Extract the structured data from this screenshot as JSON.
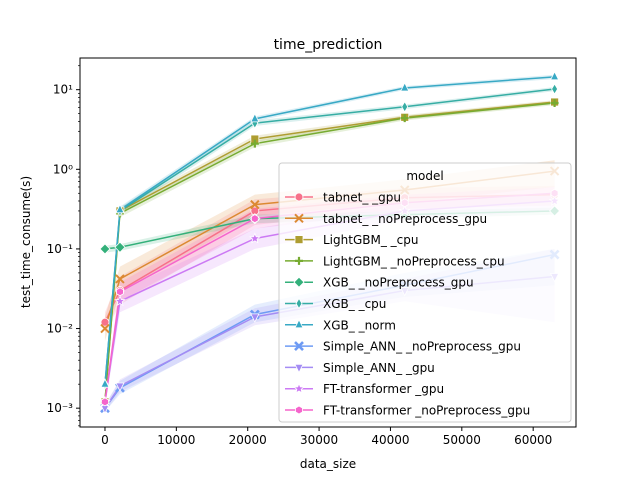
{
  "chart_data": {
    "type": "line",
    "title": "time_prediction",
    "xlabel": "data_size",
    "ylabel": "test_time_consume(s)",
    "yscale": "log",
    "xlim": [
      -3500,
      66000
    ],
    "ylim": [
      0.00058,
      25
    ],
    "grid": false,
    "x_ticks": [
      0,
      10000,
      20000,
      30000,
      40000,
      50000,
      60000
    ],
    "x_tick_labels": [
      "0",
      "10000",
      "20000",
      "30000",
      "40000",
      "50000",
      "60000"
    ],
    "y_ticks": [
      0.001,
      0.01,
      0.1,
      1,
      10
    ],
    "y_tick_labels": [
      "10⁻³",
      "10⁻²",
      "10⁻¹",
      "10⁰",
      "10¹"
    ],
    "legend": {
      "title": "model",
      "placement": "center-right"
    },
    "x": [
      0,
      2100,
      21000,
      42000,
      63000
    ],
    "series": [
      {
        "name": "tabnet_ _gpu",
        "color": "#f77189",
        "marker": "circle",
        "values": [
          0.012,
          0.03,
          0.3,
          0.44,
          0.48
        ],
        "band": [
          [
            0.009,
            0.016
          ],
          [
            0.02,
            0.045
          ],
          [
            0.2,
            0.42
          ],
          [
            0.32,
            0.58
          ],
          [
            0.35,
            0.62
          ]
        ]
      },
      {
        "name": "tabnet_ _noPreprocess_gpu",
        "color": "#dc8932",
        "marker": "x",
        "values": [
          0.01,
          0.042,
          0.36,
          0.55,
          0.95
        ],
        "band": [
          [
            0.007,
            0.014
          ],
          [
            0.028,
            0.06
          ],
          [
            0.26,
            0.48
          ],
          [
            0.38,
            0.75
          ],
          [
            0.6,
            1.3
          ]
        ]
      },
      {
        "name": "LightGBM_ _cpu",
        "color": "#ae9d31",
        "marker": "square",
        "values": [
          0.0012,
          0.3,
          2.4,
          4.5,
          7
        ],
        "band": [
          [
            0.001,
            0.0014
          ],
          [
            0.27,
            0.33
          ],
          [
            2.2,
            2.65
          ],
          [
            4.2,
            4.8
          ],
          [
            6.6,
            7.4
          ]
        ]
      },
      {
        "name": "LightGBM_ _noPreprocess_cpu",
        "color": "#77ab31",
        "marker": "plus",
        "values": [
          0.0012,
          0.28,
          2.1,
          4.4,
          6.8
        ],
        "band": [
          [
            0.001,
            0.0014
          ],
          [
            0.25,
            0.31
          ],
          [
            1.9,
            2.3
          ],
          [
            4.1,
            4.7
          ],
          [
            6.4,
            7.2
          ]
        ]
      },
      {
        "name": "XGB_ _noPreprocess_gpu",
        "color": "#33b07a",
        "marker": "diamond",
        "values": [
          0.1,
          0.105,
          0.24,
          0.27,
          0.3
        ],
        "band": [
          [
            0.09,
            0.11
          ],
          [
            0.095,
            0.115
          ],
          [
            0.21,
            0.27
          ],
          [
            0.24,
            0.3
          ],
          [
            0.27,
            0.33
          ]
        ]
      },
      {
        "name": "XGB_ _cpu",
        "color": "#36ada4",
        "marker": "thin_diamond",
        "values": [
          0.002,
          0.3,
          3.8,
          6.1,
          10.2
        ],
        "band": [
          [
            0.0017,
            0.0023
          ],
          [
            0.27,
            0.33
          ],
          [
            3.5,
            4.1
          ],
          [
            5.7,
            6.5
          ],
          [
            9.6,
            10.8
          ]
        ]
      },
      {
        "name": "XGB_ _norm",
        "color": "#38a9c5",
        "marker": "triangle_up",
        "values": [
          0.002,
          0.31,
          4.3,
          10.5,
          14.5
        ],
        "band": [
          [
            0.0017,
            0.0023
          ],
          [
            0.28,
            0.34
          ],
          [
            4.0,
            4.6
          ],
          [
            9.9,
            11.1
          ],
          [
            13.6,
            15.4
          ]
        ]
      },
      {
        "name": "Simple_ANN_ _noPreprocess_gpu",
        "color": "#6e9bf4",
        "marker": "x_thick",
        "values": [
          0.001,
          0.0018,
          0.015,
          0.035,
          0.085
        ],
        "band": [
          [
            0.0009,
            0.0011
          ],
          [
            0.0015,
            0.0022
          ],
          [
            0.012,
            0.02
          ],
          [
            0.025,
            0.05
          ],
          [
            0.035,
            0.1
          ]
        ]
      },
      {
        "name": "Simple_ANN_ _gpu",
        "color": "#a48cf4",
        "marker": "triangle_down",
        "values": [
          0.001,
          0.0019,
          0.014,
          0.03,
          0.045
        ],
        "band": [
          [
            0.0009,
            0.0011
          ],
          [
            0.0016,
            0.0023
          ],
          [
            0.011,
            0.018
          ],
          [
            0.022,
            0.042
          ],
          [
            0.012,
            0.1
          ]
        ]
      },
      {
        "name": "FT-transformer _gpu",
        "color": "#cc7af4",
        "marker": "star",
        "values": [
          0.0012,
          0.022,
          0.135,
          0.3,
          0.4
        ],
        "band": [
          [
            0.001,
            0.0014
          ],
          [
            0.016,
            0.03
          ],
          [
            0.1,
            0.18
          ],
          [
            0.23,
            0.38
          ],
          [
            0.3,
            0.5
          ]
        ]
      },
      {
        "name": "FT-transformer _noPreprocess_gpu",
        "color": "#f565cc",
        "marker": "hexagon",
        "values": [
          0.0012,
          0.029,
          0.24,
          0.38,
          0.5
        ],
        "band": [
          [
            0.001,
            0.0014
          ],
          [
            0.022,
            0.038
          ],
          [
            0.18,
            0.32
          ],
          [
            0.3,
            0.48
          ],
          [
            0.4,
            0.6
          ]
        ]
      }
    ]
  }
}
